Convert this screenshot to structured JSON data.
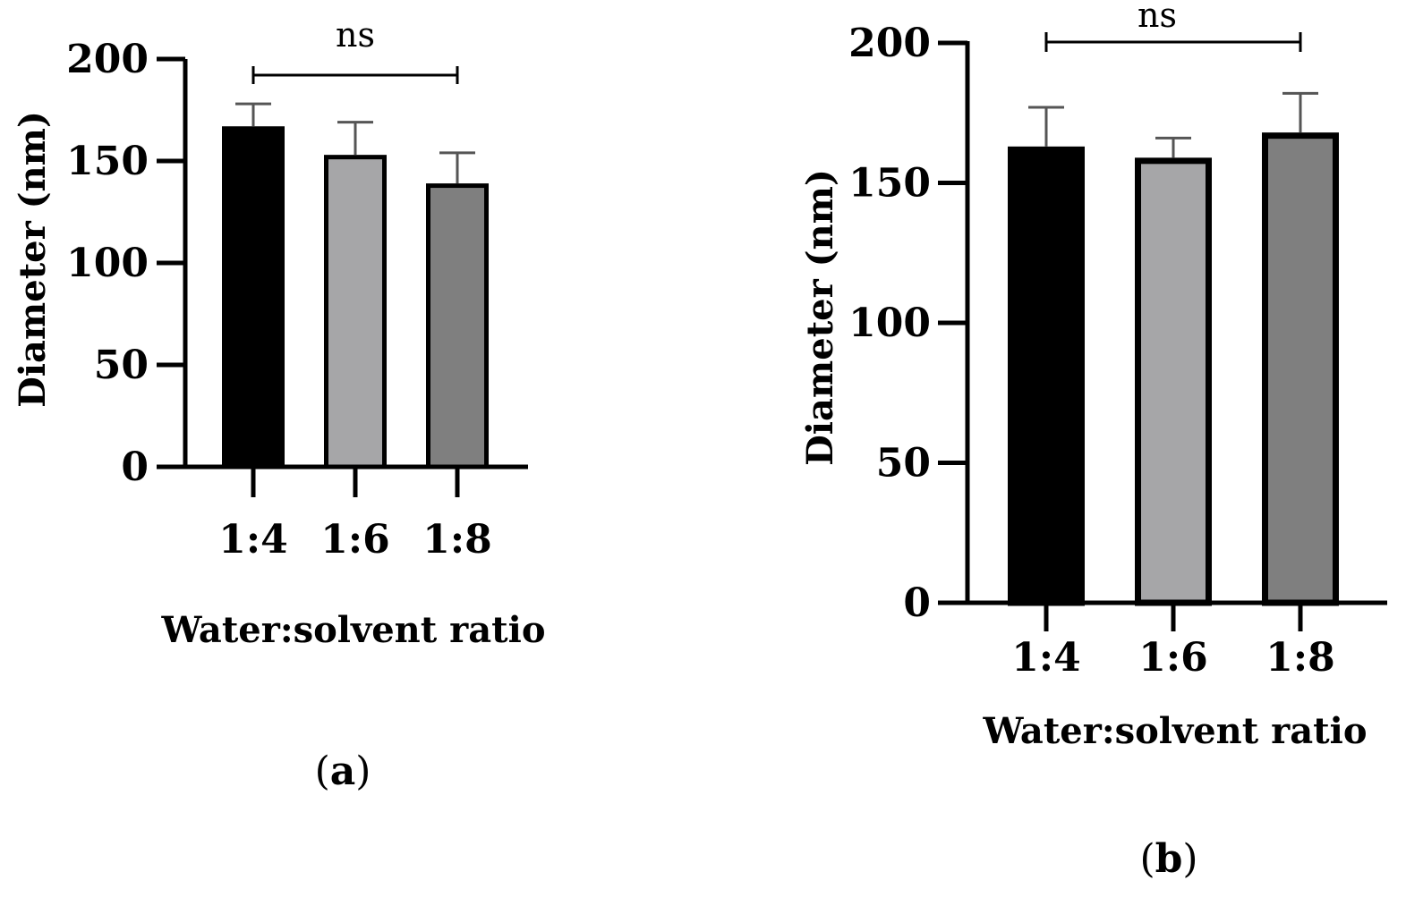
{
  "chart_data": [
    {
      "type": "bar",
      "panel_label_open": "(",
      "panel_label_letter": "a",
      "panel_label_close": ")",
      "categories": [
        "1:4",
        "1:6",
        "1:8"
      ],
      "values": [
        167,
        153,
        139
      ],
      "errors": [
        11,
        16,
        15
      ],
      "colors": [
        "#000000",
        "#a6a6a8",
        "#7f7f7f"
      ],
      "xlabel": "Water:solvent ratio",
      "ylabel": "Diameter (nm)",
      "ylim": [
        0,
        200
      ],
      "yticks": [
        "0",
        "50",
        "100",
        "150",
        "200"
      ],
      "annotation": {
        "text": "ns",
        "from": "1:4",
        "to": "1:8"
      }
    },
    {
      "type": "bar",
      "panel_label_open": "(",
      "panel_label_letter": "b",
      "panel_label_close": ")",
      "categories": [
        "1:4",
        "1:6",
        "1:8"
      ],
      "values": [
        163,
        159,
        168
      ],
      "errors": [
        14,
        7,
        14
      ],
      "colors": [
        "#000000",
        "#a6a6a8",
        "#7f7f7f"
      ],
      "xlabel": "Water:solvent ratio",
      "ylabel": "Diameter (nm)",
      "ylim": [
        0,
        200
      ],
      "yticks": [
        "0",
        "50",
        "100",
        "150",
        "200"
      ],
      "annotation": {
        "text": "ns",
        "from": "1:4",
        "to": "1:8"
      }
    }
  ]
}
